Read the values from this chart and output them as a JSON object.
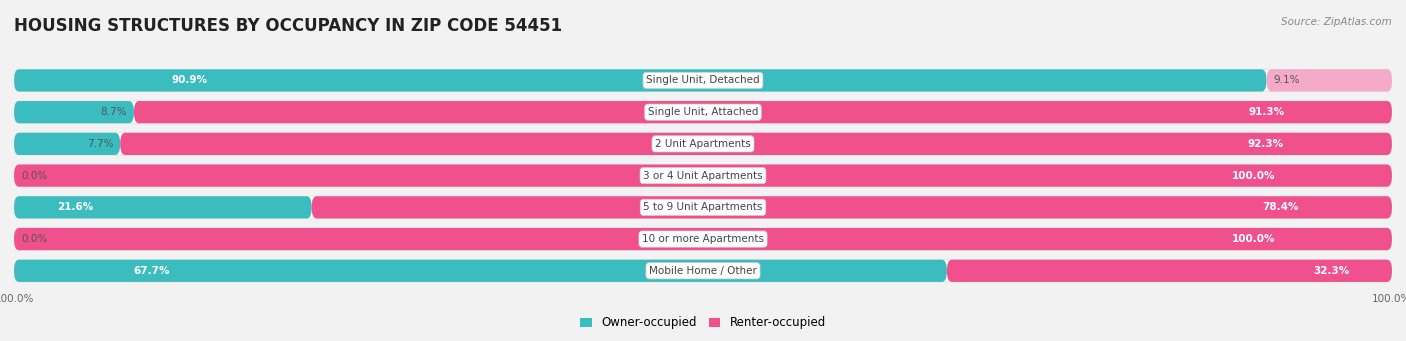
{
  "title": "HOUSING STRUCTURES BY OCCUPANCY IN ZIP CODE 54451",
  "source": "Source: ZipAtlas.com",
  "categories": [
    "Single Unit, Detached",
    "Single Unit, Attached",
    "2 Unit Apartments",
    "3 or 4 Unit Apartments",
    "5 to 9 Unit Apartments",
    "10 or more Apartments",
    "Mobile Home / Other"
  ],
  "owner_pct": [
    90.9,
    8.7,
    7.7,
    0.0,
    21.6,
    0.0,
    67.7
  ],
  "renter_pct": [
    9.1,
    91.3,
    92.3,
    100.0,
    78.4,
    100.0,
    32.3
  ],
  "owner_color": "#3bbcbf",
  "renter_color_dark": "#f0508c",
  "renter_color_light": "#f4aac8",
  "bg_color": "#f2f2f2",
  "bar_bg_color": "#ffffff",
  "title_fontsize": 12,
  "label_fontsize": 7.5,
  "cat_fontsize": 7.5,
  "tick_fontsize": 7.5,
  "legend_fontsize": 8.5,
  "renter_dark_threshold": 30
}
